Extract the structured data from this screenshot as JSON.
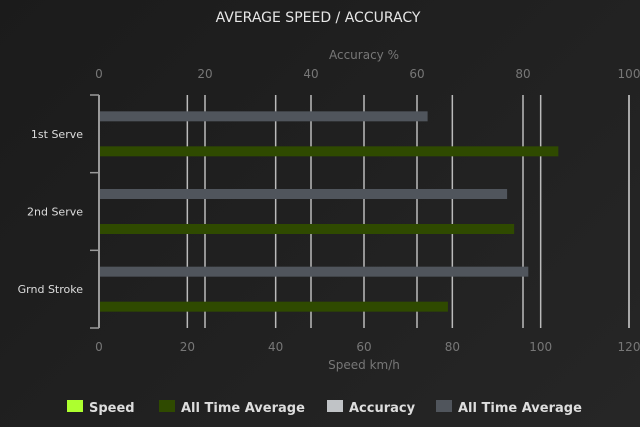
{
  "chart_data": {
    "type": "bar",
    "orientation": "horizontal",
    "title": "AVERAGE SPEED / ACCURACY",
    "categories": [
      "1st Serve",
      "2nd Serve",
      "Grnd Stroke"
    ],
    "x_top": {
      "label": "Accuracy %",
      "range": [
        0,
        100
      ],
      "ticks": [
        0,
        20,
        40,
        60,
        80,
        100
      ]
    },
    "x_bottom": {
      "label": "Speed km/h",
      "range": [
        0,
        120
      ],
      "ticks": [
        0,
        20,
        40,
        60,
        80,
        100,
        120
      ]
    },
    "grid": true,
    "legend_position": "bottom",
    "series": [
      {
        "name": "Speed",
        "axis": "speed",
        "color": "#adff2f",
        "values": [
          null,
          null,
          null
        ]
      },
      {
        "name": "All Time Average",
        "axis": "speed",
        "color": "#2f4a00",
        "values": [
          104,
          94,
          79
        ]
      },
      {
        "name": "Accuracy",
        "axis": "accuracy",
        "color": "#c0c3c6",
        "values": [
          null,
          null,
          null
        ]
      },
      {
        "name": "All Time Average",
        "axis": "accuracy",
        "color": "#50555c",
        "values": [
          62,
          77,
          81
        ]
      }
    ]
  }
}
